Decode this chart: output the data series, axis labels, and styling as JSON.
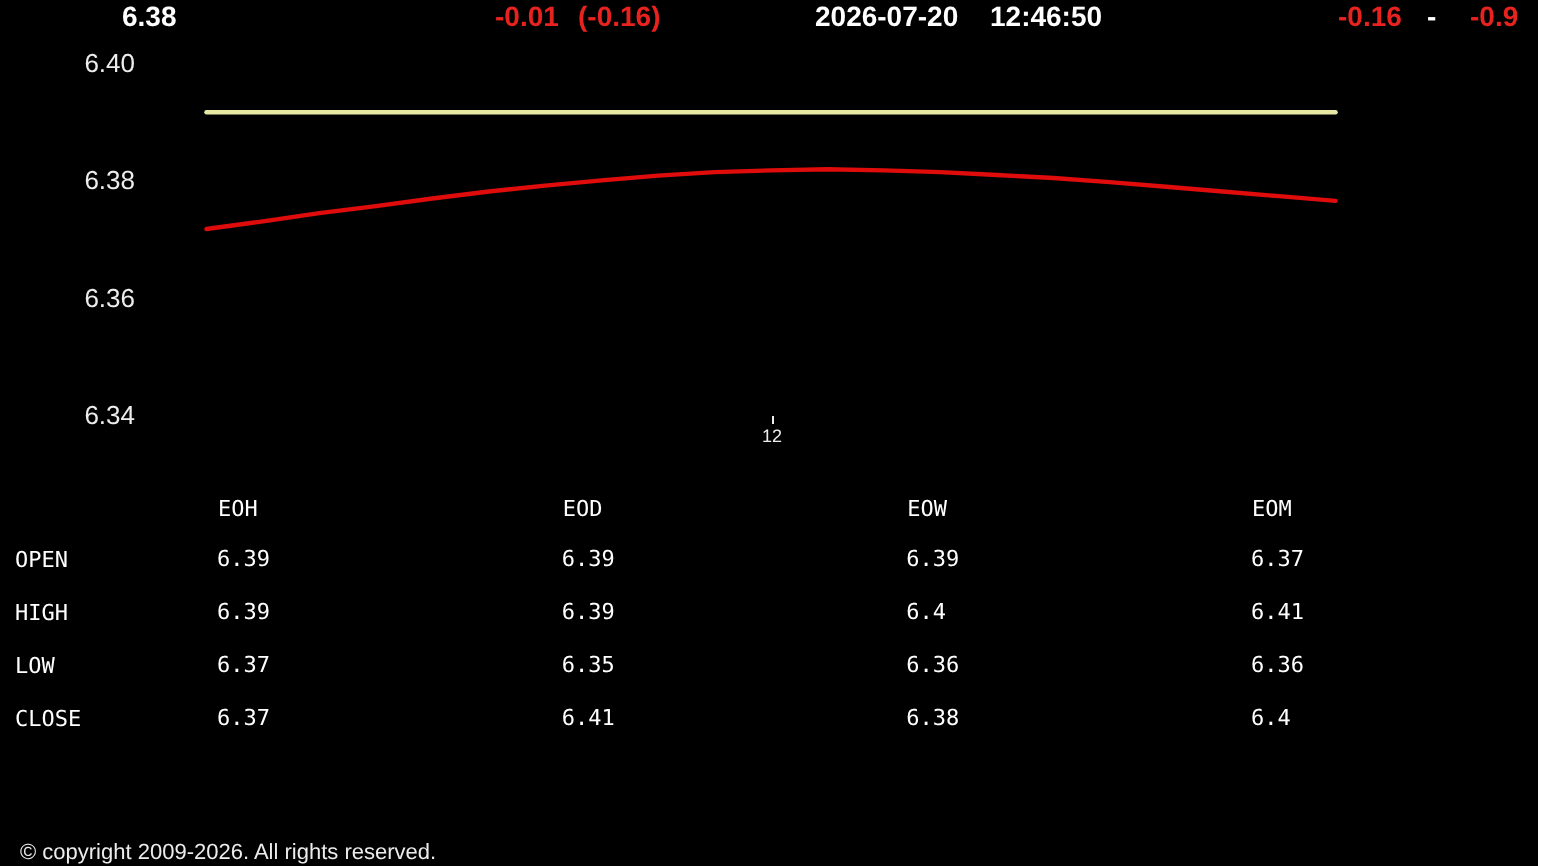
{
  "chart_data": [
    {
      "type": "line",
      "categories": [
        null,
        null,
        null,
        null,
        null,
        null,
        null,
        null,
        null,
        null,
        "12",
        null,
        null,
        null,
        null,
        null,
        null,
        null,
        null,
        null,
        null
      ],
      "series": [
        {
          "color": "#e6e8a4",
          "values": [
            6.3916,
            6.3916,
            6.3916,
            6.3916,
            6.3916,
            6.3916,
            6.3916,
            6.3916,
            6.3916,
            6.3916,
            6.3916,
            6.3916,
            6.3916,
            6.3916,
            6.3916,
            6.3916,
            6.3916,
            6.3916,
            6.3916,
            6.3916,
            6.3916
          ]
        },
        {
          "color": "#e00c0c",
          "values": [
            6.3717,
            6.373,
            6.3744,
            6.3756,
            6.3769,
            6.3781,
            6.3791,
            6.38,
            6.3808,
            6.3814,
            6.3817,
            6.3819,
            6.3817,
            6.3814,
            6.3809,
            6.3804,
            6.3797,
            6.3789,
            6.3781,
            6.3773,
            6.3765
          ]
        }
      ],
      "ylim": [
        6.34,
        6.4
      ],
      "yticks": [
        {
          "value": 6.4,
          "label": "6.40"
        },
        6.38,
        6.36,
        6.34
      ],
      "annotations": [
        "6.38",
        "-0.01",
        "(-0.16)",
        "2026-07-20",
        "12:46:50",
        "-0.16",
        "-",
        "-0.9"
      ]
    },
    {
      "type": "heatmap",
      "categories": [
        "EOH",
        "EOD",
        "EOW",
        "EOM"
      ],
      "y_categories": [
        "OPEN",
        "HIGH",
        "LOW",
        "CLOSE"
      ],
      "cells": [
        [
          6.39,
          6.39,
          6.39,
          6.37
        ],
        [
          6.39,
          6.39,
          6.4,
          6.41
        ],
        [
          6.37,
          6.35,
          6.36,
          6.36
        ],
        [
          6.37,
          6.41,
          6.38,
          6.4
        ]
      ],
      "data_labels": true,
      "annotations": [
        "© copyright 2009-2026. All rights reserved."
      ]
    }
  ]
}
